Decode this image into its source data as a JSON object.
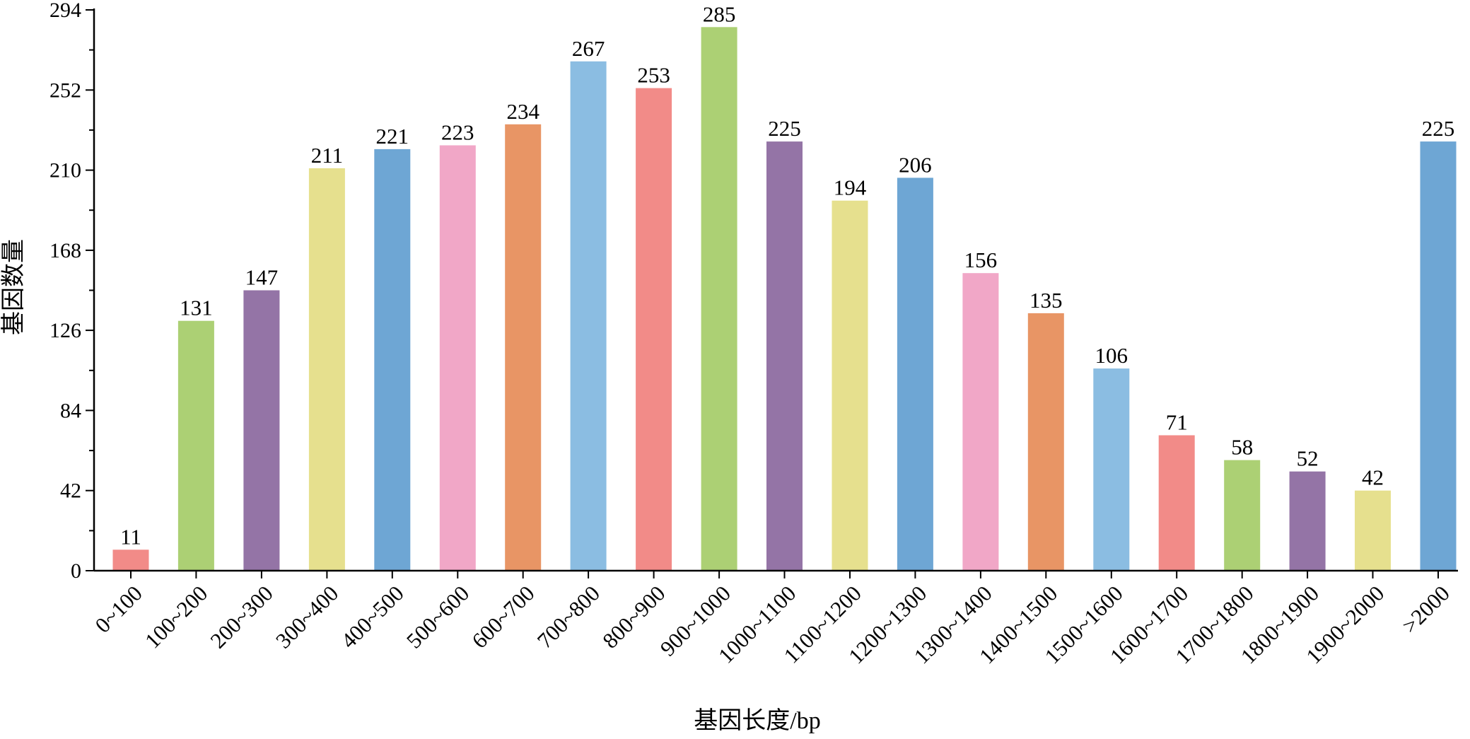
{
  "chart_data": {
    "type": "bar",
    "title": "",
    "xlabel": "基因长度/bp",
    "ylabel": "基因数量",
    "ylim": [
      0,
      294
    ],
    "yticks": [
      0,
      42,
      84,
      126,
      168,
      210,
      252,
      294
    ],
    "grid": false,
    "legend": "none",
    "categories": [
      "0~100",
      "100~200",
      "200~300",
      "300~400",
      "400~500",
      "500~600",
      "600~700",
      "700~800",
      "800~900",
      "900~1000",
      "1000~1100",
      "1100~1200",
      "1200~1300",
      "1300~1400",
      "1400~1500",
      "1500~1600",
      "1600~1700",
      "1700~1800",
      "1800~1900",
      "1900~2000",
      ">2000"
    ],
    "values": [
      11,
      131,
      147,
      211,
      221,
      223,
      234,
      267,
      253,
      285,
      225,
      194,
      206,
      156,
      135,
      106,
      71,
      58,
      52,
      42,
      225
    ],
    "colors": [
      "#f28b88",
      "#acd074",
      "#9474a6",
      "#e6e08e",
      "#6ea6d4",
      "#f1a7c7",
      "#e89565",
      "#8bbde2",
      "#f28b88",
      "#acd074",
      "#9474a6",
      "#e6e08e",
      "#6ea6d4",
      "#f1a7c7",
      "#e89565",
      "#8bbde2",
      "#f28b88",
      "#acd074",
      "#9474a6",
      "#e6e08e",
      "#6ea6d4"
    ]
  }
}
